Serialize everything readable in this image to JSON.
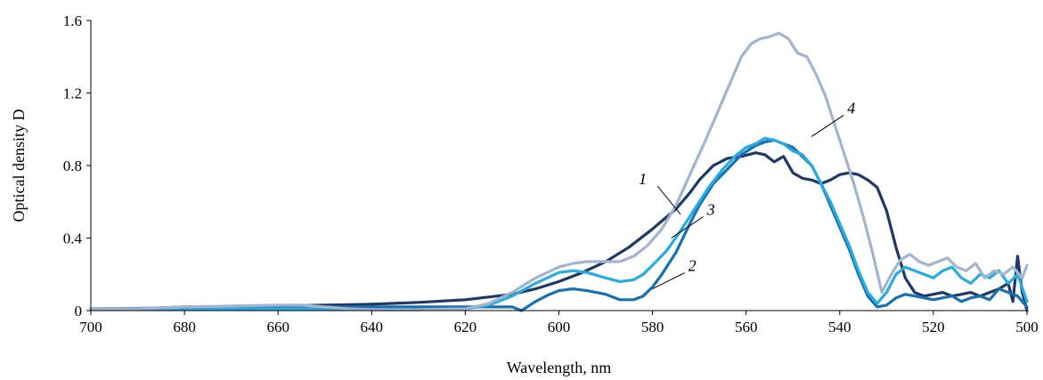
{
  "chart_data": {
    "type": "line",
    "title": "",
    "xlabel": "Wavelength, nm",
    "ylabel": "Optical density D",
    "xlim": [
      700,
      500
    ],
    "x_reversed": true,
    "ylim": [
      0,
      1.6
    ],
    "x_ticks": [
      "700",
      "680",
      "660",
      "640",
      "620",
      "600",
      "580",
      "560",
      "540",
      "520",
      "500"
    ],
    "y_ticks": [
      "0",
      "0.4",
      "0.8",
      "1.2",
      "1.6"
    ],
    "grid": false,
    "legend": "none",
    "series": [
      {
        "name": "1",
        "color": "#1f3864",
        "points": [
          [
            700,
            0.01
          ],
          [
            690,
            0.01
          ],
          [
            680,
            0.02
          ],
          [
            670,
            0.02
          ],
          [
            660,
            0.025
          ],
          [
            650,
            0.03
          ],
          [
            640,
            0.035
          ],
          [
            630,
            0.045
          ],
          [
            620,
            0.06
          ],
          [
            610,
            0.09
          ],
          [
            605,
            0.12
          ],
          [
            600,
            0.16
          ],
          [
            595,
            0.21
          ],
          [
            590,
            0.27
          ],
          [
            585,
            0.35
          ],
          [
            580,
            0.45
          ],
          [
            575,
            0.56
          ],
          [
            572,
            0.65
          ],
          [
            570,
            0.72
          ],
          [
            567,
            0.8
          ],
          [
            564,
            0.84
          ],
          [
            561,
            0.85
          ],
          [
            558,
            0.87
          ],
          [
            556,
            0.86
          ],
          [
            554,
            0.82
          ],
          [
            552,
            0.85
          ],
          [
            550,
            0.76
          ],
          [
            548,
            0.73
          ],
          [
            546,
            0.72
          ],
          [
            544,
            0.7
          ],
          [
            542,
            0.72
          ],
          [
            540,
            0.75
          ],
          [
            538,
            0.76
          ],
          [
            536,
            0.75
          ],
          [
            534,
            0.72
          ],
          [
            532,
            0.68
          ],
          [
            530,
            0.55
          ],
          [
            528,
            0.35
          ],
          [
            526,
            0.18
          ],
          [
            524,
            0.1
          ],
          [
            522,
            0.08
          ],
          [
            520,
            0.09
          ],
          [
            518,
            0.1
          ],
          [
            516,
            0.08
          ],
          [
            514,
            0.09
          ],
          [
            512,
            0.1
          ],
          [
            510,
            0.08
          ],
          [
            508,
            0.1
          ],
          [
            506,
            0.12
          ],
          [
            504,
            0.15
          ],
          [
            503,
            0.05
          ],
          [
            502,
            0.3
          ],
          [
            501,
            0.1
          ],
          [
            500,
            0.0
          ]
        ]
      },
      {
        "name": "2",
        "color": "#1a6fb0",
        "points": [
          [
            700,
            0.01
          ],
          [
            680,
            0.015
          ],
          [
            660,
            0.02
          ],
          [
            650,
            0.02
          ],
          [
            640,
            0.02
          ],
          [
            630,
            0.02
          ],
          [
            620,
            0.02
          ],
          [
            615,
            0.02
          ],
          [
            610,
            0.02
          ],
          [
            608,
            0.0
          ],
          [
            605,
            0.05
          ],
          [
            602,
            0.09
          ],
          [
            600,
            0.11
          ],
          [
            597,
            0.12
          ],
          [
            594,
            0.11
          ],
          [
            590,
            0.09
          ],
          [
            587,
            0.06
          ],
          [
            584,
            0.06
          ],
          [
            582,
            0.08
          ],
          [
            580,
            0.13
          ],
          [
            578,
            0.2
          ],
          [
            575,
            0.32
          ],
          [
            572,
            0.48
          ],
          [
            570,
            0.58
          ],
          [
            567,
            0.7
          ],
          [
            564,
            0.78
          ],
          [
            561,
            0.86
          ],
          [
            558,
            0.91
          ],
          [
            556,
            0.93
          ],
          [
            554,
            0.94
          ],
          [
            552,
            0.92
          ],
          [
            550,
            0.9
          ],
          [
            548,
            0.85
          ],
          [
            546,
            0.8
          ],
          [
            544,
            0.7
          ],
          [
            542,
            0.58
          ],
          [
            540,
            0.46
          ],
          [
            538,
            0.34
          ],
          [
            536,
            0.2
          ],
          [
            534,
            0.08
          ],
          [
            532,
            0.02
          ],
          [
            530,
            0.03
          ],
          [
            528,
            0.07
          ],
          [
            526,
            0.09
          ],
          [
            524,
            0.08
          ],
          [
            522,
            0.07
          ],
          [
            520,
            0.06
          ],
          [
            518,
            0.07
          ],
          [
            516,
            0.08
          ],
          [
            514,
            0.05
          ],
          [
            512,
            0.07
          ],
          [
            510,
            0.08
          ],
          [
            508,
            0.06
          ],
          [
            506,
            0.12
          ],
          [
            504,
            0.1
          ],
          [
            502,
            0.08
          ],
          [
            500,
            0.02
          ]
        ]
      },
      {
        "name": "3",
        "color": "#29abe2",
        "points": [
          [
            700,
            0.01
          ],
          [
            680,
            0.01
          ],
          [
            660,
            0.01
          ],
          [
            650,
            0.01
          ],
          [
            640,
            0.005
          ],
          [
            630,
            0.005
          ],
          [
            620,
            0.01
          ],
          [
            615,
            0.03
          ],
          [
            610,
            0.08
          ],
          [
            605,
            0.15
          ],
          [
            600,
            0.21
          ],
          [
            597,
            0.22
          ],
          [
            594,
            0.21
          ],
          [
            590,
            0.18
          ],
          [
            587,
            0.16
          ],
          [
            584,
            0.17
          ],
          [
            582,
            0.2
          ],
          [
            580,
            0.25
          ],
          [
            577,
            0.33
          ],
          [
            574,
            0.44
          ],
          [
            571,
            0.56
          ],
          [
            568,
            0.68
          ],
          [
            565,
            0.78
          ],
          [
            562,
            0.86
          ],
          [
            560,
            0.9
          ],
          [
            558,
            0.92
          ],
          [
            556,
            0.95
          ],
          [
            554,
            0.94
          ],
          [
            552,
            0.92
          ],
          [
            550,
            0.88
          ],
          [
            548,
            0.86
          ],
          [
            546,
            0.8
          ],
          [
            544,
            0.7
          ],
          [
            542,
            0.6
          ],
          [
            540,
            0.48
          ],
          [
            538,
            0.36
          ],
          [
            536,
            0.22
          ],
          [
            534,
            0.1
          ],
          [
            532,
            0.04
          ],
          [
            530,
            0.1
          ],
          [
            528,
            0.2
          ],
          [
            526,
            0.24
          ],
          [
            524,
            0.22
          ],
          [
            522,
            0.2
          ],
          [
            520,
            0.18
          ],
          [
            518,
            0.22
          ],
          [
            516,
            0.24
          ],
          [
            514,
            0.18
          ],
          [
            512,
            0.15
          ],
          [
            510,
            0.2
          ],
          [
            508,
            0.18
          ],
          [
            506,
            0.22
          ],
          [
            504,
            0.15
          ],
          [
            502,
            0.2
          ],
          [
            500,
            0.05
          ]
        ]
      },
      {
        "name": "4",
        "color": "#a3b4cf",
        "points": [
          [
            700,
            0.01
          ],
          [
            690,
            0.01
          ],
          [
            680,
            0.02
          ],
          [
            670,
            0.025
          ],
          [
            660,
            0.03
          ],
          [
            655,
            0.03
          ],
          [
            650,
            0.02
          ],
          [
            645,
            0.01
          ],
          [
            640,
            0.005
          ],
          [
            630,
            0.005
          ],
          [
            620,
            0.01
          ],
          [
            615,
            0.04
          ],
          [
            610,
            0.1
          ],
          [
            605,
            0.18
          ],
          [
            600,
            0.24
          ],
          [
            597,
            0.26
          ],
          [
            594,
            0.27
          ],
          [
            590,
            0.27
          ],
          [
            587,
            0.27
          ],
          [
            584,
            0.3
          ],
          [
            581,
            0.36
          ],
          [
            578,
            0.45
          ],
          [
            575,
            0.58
          ],
          [
            572,
            0.75
          ],
          [
            569,
            0.92
          ],
          [
            566,
            1.1
          ],
          [
            563,
            1.28
          ],
          [
            561,
            1.4
          ],
          [
            559,
            1.47
          ],
          [
            557,
            1.5
          ],
          [
            555,
            1.51
          ],
          [
            553,
            1.53
          ],
          [
            551,
            1.5
          ],
          [
            549,
            1.42
          ],
          [
            547,
            1.4
          ],
          [
            545,
            1.3
          ],
          [
            543,
            1.18
          ],
          [
            541,
            1.02
          ],
          [
            539,
            0.86
          ],
          [
            537,
            0.7
          ],
          [
            535,
            0.52
          ],
          [
            533,
            0.32
          ],
          [
            531,
            0.1
          ],
          [
            529,
            0.2
          ],
          [
            527,
            0.28
          ],
          [
            525,
            0.31
          ],
          [
            523,
            0.27
          ],
          [
            521,
            0.25
          ],
          [
            519,
            0.27
          ],
          [
            517,
            0.29
          ],
          [
            515,
            0.24
          ],
          [
            513,
            0.22
          ],
          [
            511,
            0.26
          ],
          [
            509,
            0.18
          ],
          [
            507,
            0.22
          ],
          [
            505,
            0.2
          ],
          [
            503,
            0.24
          ],
          [
            501,
            0.18
          ],
          [
            500,
            0.25
          ]
        ]
      }
    ],
    "annotations": [
      {
        "text": "1",
        "series": "1",
        "at": [
          574,
          0.53
        ]
      },
      {
        "text": "2",
        "series": "2",
        "at": [
          580,
          0.12
        ]
      },
      {
        "text": "3",
        "series": "3",
        "at": [
          576,
          0.4
        ]
      },
      {
        "text": "4",
        "series": "4",
        "at": [
          546,
          0.96
        ]
      }
    ]
  }
}
